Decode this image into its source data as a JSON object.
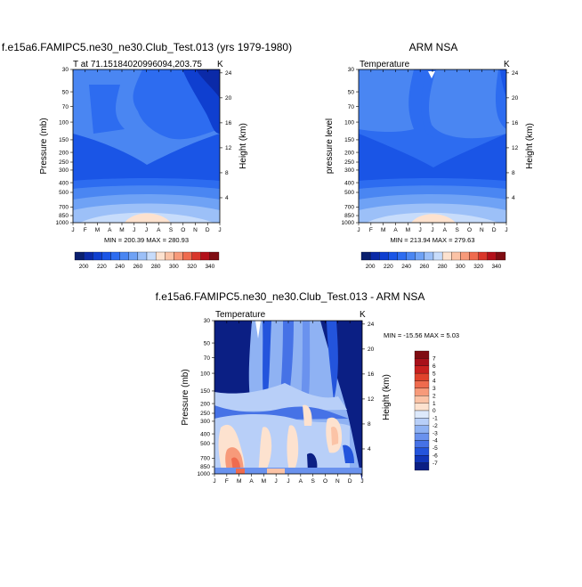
{
  "chart_data": [
    {
      "type": "heatmap",
      "title": "f.e15a6.FAMIPC5.ne30_ne30.Club_Test.013 (yrs 1979-1980)",
      "subtitle_left": "T at 71.15184020996094,203.75",
      "subtitle_right": "K",
      "ylabel": "Pressure (mb)",
      "ylabel_right": "Height (km)",
      "x_ticks": [
        "J",
        "F",
        "M",
        "A",
        "M",
        "J",
        "J",
        "A",
        "S",
        "O",
        "N",
        "D",
        "J"
      ],
      "y_ticks": [
        "30",
        "50",
        "70",
        "100",
        "150",
        "200",
        "250",
        "300",
        "400",
        "500",
        "700",
        "850",
        "1000"
      ],
      "height_ticks": [
        "24",
        "20",
        "16",
        "12",
        "8",
        "4"
      ],
      "stats": "MIN = 200.39 MAX = 280.93",
      "colorbar_labels": [
        "200",
        "220",
        "240",
        "260",
        "280",
        "300",
        "320",
        "340"
      ],
      "min": 200.39,
      "max": 280.93
    },
    {
      "type": "heatmap",
      "title": "ARM NSA",
      "subtitle_left": "Temperature",
      "subtitle_right": "K",
      "ylabel": "pressure level",
      "ylabel_right": "Height (km)",
      "x_ticks": [
        "J",
        "F",
        "M",
        "A",
        "M",
        "J",
        "J",
        "A",
        "S",
        "O",
        "N",
        "D",
        "J"
      ],
      "y_ticks": [
        "30",
        "50",
        "70",
        "100",
        "150",
        "200",
        "250",
        "300",
        "400",
        "500",
        "700",
        "850",
        "1000"
      ],
      "height_ticks": [
        "24",
        "20",
        "16",
        "12",
        "8",
        "4"
      ],
      "stats": "MIN = 213.94 MAX = 279.63",
      "colorbar_labels": [
        "200",
        "220",
        "240",
        "260",
        "280",
        "300",
        "320",
        "340"
      ],
      "min": 213.94,
      "max": 279.63
    },
    {
      "type": "heatmap",
      "title": "f.e15a6.FAMIPC5.ne30_ne30.Club_Test.013 - ARM NSA",
      "subtitle_left": "Temperature",
      "subtitle_right": "K",
      "ylabel": "Pressure (mb)",
      "ylabel_right": "Height (km)",
      "x_ticks": [
        "J",
        "F",
        "M",
        "A",
        "M",
        "J",
        "J",
        "A",
        "S",
        "O",
        "N",
        "D",
        "J"
      ],
      "y_ticks": [
        "30",
        "50",
        "70",
        "100",
        "150",
        "200",
        "250",
        "300",
        "400",
        "500",
        "700",
        "850",
        "1000"
      ],
      "height_ticks": [
        "24",
        "20",
        "16",
        "12",
        "8",
        "4"
      ],
      "stats": "MIN = -15.56 MAX =   5.03",
      "colorbar_labels": [
        "7",
        "6",
        "5",
        "4",
        "3",
        "2",
        "1",
        "0",
        "-1",
        "-2",
        "-3",
        "-4",
        "-5",
        "-6",
        "-7"
      ],
      "min": -15.56,
      "max": 5.03
    }
  ],
  "colors": {
    "temperature_scale": [
      "#0a1f6e",
      "#0b2aa8",
      "#0f3fd0",
      "#1a55e6",
      "#2d6cf0",
      "#4a86f2",
      "#6fa2f5",
      "#9cc0f8",
      "#c7dcfb",
      "#fde2cf",
      "#fbc3a6",
      "#f79a7a",
      "#ef6b4e",
      "#d9362a",
      "#b3101a",
      "#7f0c12"
    ],
    "difference_scale": [
      "#7f0c12",
      "#a8101a",
      "#c8201f",
      "#e0422c",
      "#ef6b4e",
      "#f79a7a",
      "#fbc3a6",
      "#fde2cf",
      "#dde9fb",
      "#b8cff8",
      "#8fb2f3",
      "#6a92ee",
      "#4672e6",
      "#2354dc",
      "#1035b8",
      "#0b1f84"
    ]
  }
}
